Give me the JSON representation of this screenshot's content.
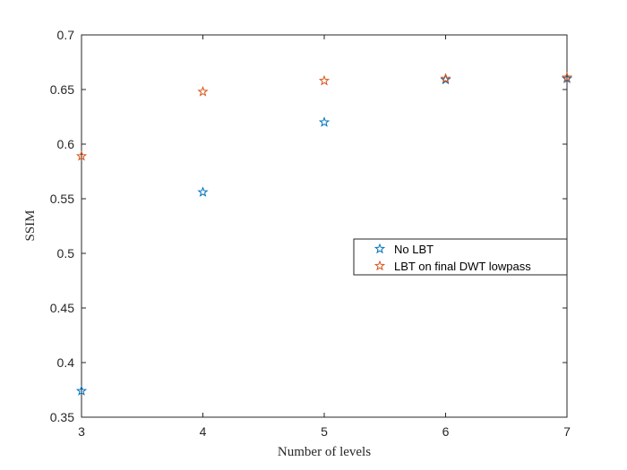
{
  "chart_data": {
    "type": "scatter",
    "title": "",
    "xlabel": "Number of levels",
    "ylabel": "SSIM",
    "xlim": [
      3,
      7
    ],
    "ylim": [
      0.35,
      0.7
    ],
    "xticks": [
      3,
      4,
      5,
      6,
      7
    ],
    "xtick_labels": [
      "3",
      "4",
      "5",
      "6",
      "7"
    ],
    "yticks": [
      0.35,
      0.4,
      0.45,
      0.5,
      0.55,
      0.6,
      0.65,
      0.7
    ],
    "ytick_labels": [
      "0.35",
      "0.4",
      "0.45",
      "0.5",
      "0.55",
      "0.6",
      "0.65",
      "0.7"
    ],
    "grid": false,
    "legend_position": "right",
    "marker": "star",
    "series": [
      {
        "name": "No LBT",
        "color": "#0072bd",
        "x": [
          3,
          4,
          5,
          6,
          7
        ],
        "y": [
          0.374,
          0.556,
          0.62,
          0.659,
          0.66
        ]
      },
      {
        "name": "LBT on final DWT lowpass",
        "color": "#d95319",
        "x": [
          3,
          4,
          5,
          6,
          7
        ],
        "y": [
          0.589,
          0.648,
          0.658,
          0.66,
          0.661
        ]
      }
    ]
  }
}
